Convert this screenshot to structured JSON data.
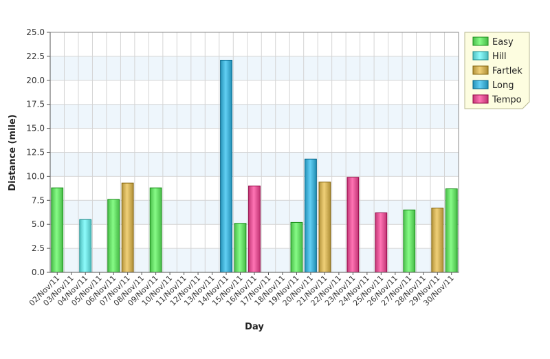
{
  "chart_data": {
    "type": "bar",
    "xlabel": "Day",
    "ylabel": "Distance (mile)",
    "ylim": [
      0,
      25
    ],
    "yticks": [
      "0.0",
      "2.5",
      "5.0",
      "7.5",
      "10.0",
      "12.5",
      "15.0",
      "17.5",
      "20.0",
      "22.5",
      "25.0"
    ],
    "grid": true,
    "legend_position": "top-right",
    "categories": [
      "02/Nov/11",
      "03/Nov/11",
      "04/Nov/11",
      "05/Nov/11",
      "06/Nov/11",
      "07/Nov/11",
      "08/Nov/11",
      "09/Nov/11",
      "10/Nov/11",
      "11/Nov/11",
      "12/Nov/11",
      "13/Nov/11",
      "14/Nov/11",
      "15/Nov/11",
      "16/Nov/11",
      "17/Nov/11",
      "18/Nov/11",
      "19/Nov/11",
      "20/Nov/11",
      "21/Nov/11",
      "22/Nov/11",
      "23/Nov/11",
      "24/Nov/11",
      "25/Nov/11",
      "26/Nov/11",
      "27/Nov/11",
      "28/Nov/11",
      "29/Nov/11",
      "30/Nov/11"
    ],
    "series": [
      {
        "name": "Easy",
        "color": "#5fd35f",
        "values": [
          8.8,
          null,
          null,
          null,
          7.6,
          null,
          null,
          8.8,
          null,
          null,
          null,
          null,
          null,
          5.1,
          null,
          null,
          null,
          5.2,
          null,
          null,
          null,
          null,
          null,
          null,
          null,
          6.5,
          null,
          null,
          8.7
        ]
      },
      {
        "name": "Hill",
        "color": "#66d4d4",
        "values": [
          null,
          null,
          5.5,
          null,
          null,
          null,
          null,
          null,
          null,
          null,
          null,
          null,
          null,
          null,
          null,
          null,
          null,
          null,
          null,
          null,
          null,
          null,
          null,
          null,
          null,
          null,
          null,
          null,
          null
        ]
      },
      {
        "name": "Fartlek",
        "color": "#c8a850",
        "values": [
          null,
          null,
          null,
          null,
          null,
          9.3,
          null,
          null,
          null,
          null,
          null,
          null,
          null,
          null,
          null,
          null,
          null,
          null,
          null,
          9.4,
          null,
          null,
          null,
          null,
          null,
          null,
          null,
          6.7,
          null
        ]
      },
      {
        "name": "Long",
        "color": "#3aa7cc",
        "values": [
          null,
          null,
          null,
          null,
          null,
          null,
          null,
          null,
          null,
          null,
          null,
          null,
          22.1,
          null,
          null,
          null,
          null,
          null,
          11.8,
          null,
          null,
          null,
          null,
          null,
          null,
          null,
          null,
          null,
          null
        ]
      },
      {
        "name": "Tempo",
        "color": "#d94c8c",
        "values": [
          null,
          null,
          null,
          null,
          null,
          null,
          null,
          null,
          null,
          null,
          null,
          null,
          null,
          null,
          9.0,
          null,
          null,
          null,
          null,
          null,
          null,
          9.9,
          null,
          6.2,
          null,
          null,
          null,
          null,
          null
        ]
      }
    ]
  }
}
